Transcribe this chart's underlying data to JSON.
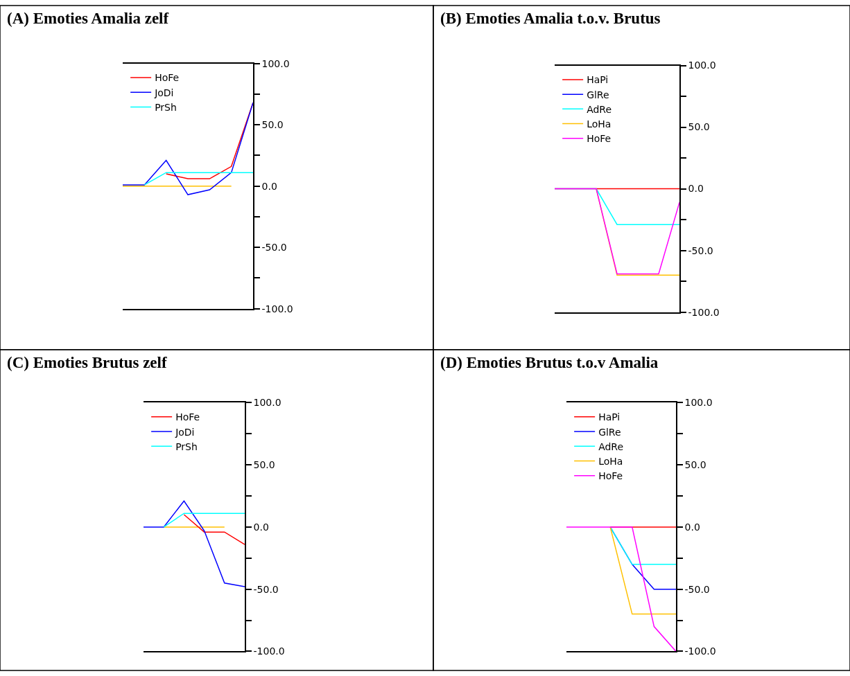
{
  "chart_data": [
    {
      "type": "line",
      "title": "(A) Emoties Amalia zelf",
      "categories": [
        null,
        null,
        null,
        null,
        null,
        null,
        null
      ],
      "ylim": [
        -100,
        100
      ],
      "yticks": [
        {
          "value": 100,
          "label": "100.0"
        },
        {
          "value": 75,
          "label": null
        },
        {
          "value": 50,
          "label": "50.0"
        },
        {
          "value": 25,
          "label": null
        },
        {
          "value": 0,
          "label": "0.0"
        },
        {
          "value": -25,
          "label": null
        },
        {
          "value": -50,
          "label": "-50.0"
        },
        {
          "value": -75,
          "label": null
        },
        {
          "value": -100,
          "label": "-100.0"
        }
      ],
      "tick_labels": "y",
      "legend": "top left",
      "series": [
        {
          "color": "#ffc000",
          "values": [
            0,
            0,
            0,
            0,
            0,
            0,
            null
          ]
        },
        {
          "name": "HoFe",
          "color": "#ff0000",
          "values": [
            null,
            null,
            10,
            6,
            6,
            16,
            68
          ]
        },
        {
          "name": "JoDi",
          "color": "#0000ff",
          "values": [
            1,
            1,
            21,
            -7,
            -3,
            11,
            68
          ]
        },
        {
          "name": "PrSh",
          "color": "#00ffff",
          "values": [
            null,
            1,
            11,
            11,
            11,
            11,
            11
          ]
        }
      ]
    },
    {
      "type": "line",
      "title": "(B) Emoties Amalia t.o.v. Brutus",
      "categories": [
        null,
        null,
        null,
        null,
        null,
        null,
        null
      ],
      "ylim": [
        -100,
        100
      ],
      "yticks": [
        {
          "value": 100,
          "label": "100.0"
        },
        {
          "value": 75,
          "label": null
        },
        {
          "value": 50,
          "label": "50.0"
        },
        {
          "value": 25,
          "label": null
        },
        {
          "value": 0,
          "label": "0.0"
        },
        {
          "value": -25,
          "label": null
        },
        {
          "value": -50,
          "label": "-50.0"
        },
        {
          "value": -75,
          "label": null
        },
        {
          "value": -100,
          "label": "-100.0"
        }
      ],
      "tick_labels": "y",
      "legend": "top left",
      "series": [
        {
          "name": "HaPi",
          "color": "#ff0000",
          "values": [
            0,
            0,
            0,
            0,
            0,
            0,
            0
          ]
        },
        {
          "name": "GlRe",
          "color": "#0000ff",
          "values": [
            null,
            null,
            null,
            null,
            null,
            null,
            null
          ]
        },
        {
          "name": "AdRe",
          "color": "#00ffff",
          "values": [
            0,
            0,
            0,
            -29,
            -29,
            -29,
            -29
          ]
        },
        {
          "name": "LoHa",
          "color": "#ffc000",
          "values": [
            null,
            null,
            0,
            -70,
            -70,
            -70,
            -70
          ]
        },
        {
          "name": "HoFe",
          "color": "#ff00ff",
          "values": [
            0,
            0,
            0,
            -69,
            -69,
            -69,
            -11
          ]
        }
      ]
    },
    {
      "type": "line",
      "title": "(C) Emoties Brutus zelf",
      "categories": [
        null,
        null,
        null,
        null,
        null,
        null
      ],
      "ylim": [
        -100,
        100
      ],
      "yticks": [
        {
          "value": 100,
          "label": "100.0"
        },
        {
          "value": 75,
          "label": null
        },
        {
          "value": 50,
          "label": "50.0"
        },
        {
          "value": 25,
          "label": null
        },
        {
          "value": 0,
          "label": "0.0"
        },
        {
          "value": -25,
          "label": null
        },
        {
          "value": -50,
          "label": "-50.0"
        },
        {
          "value": -75,
          "label": null
        },
        {
          "value": -100,
          "label": "-100.0"
        }
      ],
      "tick_labels": "y",
      "legend": "top left",
      "series": [
        {
          "color": "#ffc000",
          "values": [
            null,
            0,
            0,
            0,
            0,
            null
          ]
        },
        {
          "name": "HoFe",
          "color": "#ff0000",
          "values": [
            null,
            null,
            10,
            -4,
            -4,
            -14
          ]
        },
        {
          "name": "JoDi",
          "color": "#0000ff",
          "values": [
            0,
            0,
            21,
            -3,
            -45,
            -48
          ]
        },
        {
          "name": "PrSh",
          "color": "#00ffff",
          "values": [
            null,
            0,
            11,
            11,
            11,
            11
          ]
        }
      ]
    },
    {
      "type": "line",
      "title": "(D) Emoties Brutus t.o.v Amalia",
      "categories": [
        null,
        null,
        null,
        null,
        null,
        null
      ],
      "ylim": [
        -100,
        100
      ],
      "yticks": [
        {
          "value": 100,
          "label": "100.0"
        },
        {
          "value": 75,
          "label": null
        },
        {
          "value": 50,
          "label": "50.0"
        },
        {
          "value": 25,
          "label": null
        },
        {
          "value": 0,
          "label": "0.0"
        },
        {
          "value": -25,
          "label": null
        },
        {
          "value": -50,
          "label": "-50.0"
        },
        {
          "value": -75,
          "label": null
        },
        {
          "value": -100,
          "label": "-100.0"
        }
      ],
      "tick_labels": "y",
      "legend": "top left",
      "series": [
        {
          "name": "HaPi",
          "color": "#ff0000",
          "values": [
            null,
            null,
            0,
            0,
            0,
            0
          ]
        },
        {
          "name": "GlRe",
          "color": "#0000ff",
          "values": [
            null,
            null,
            0,
            -30,
            -50,
            -50
          ]
        },
        {
          "name": "AdRe",
          "color": "#00ffff",
          "values": [
            null,
            null,
            0,
            -30,
            -30,
            -30
          ]
        },
        {
          "name": "LoHa",
          "color": "#ffc000",
          "values": [
            null,
            null,
            0,
            -70,
            -70,
            -70
          ]
        },
        {
          "name": "HoFe",
          "color": "#ff00ff",
          "values": [
            0,
            0,
            0,
            0,
            -80,
            -100
          ]
        }
      ]
    }
  ]
}
